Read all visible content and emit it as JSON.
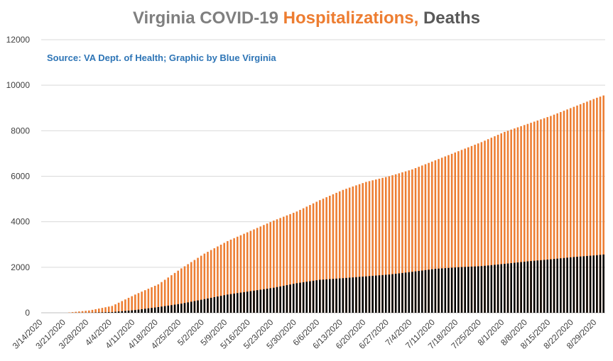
{
  "title": {
    "part1": "Virginia COVID-19 ",
    "part2": "Hospitalizations,",
    "part3": " Deaths",
    "color_part1": "#7f7f7f",
    "color_part2": "#ed7d31",
    "color_part3": "#595959"
  },
  "subtitle": "Source: VA Dept. of Health; Graphic by Blue Virginia",
  "chart_data": {
    "type": "bar",
    "title": "Virginia COVID-19 Hospitalizations, Deaths",
    "x_start": "3/14/2020",
    "x_end": "8/31/2020",
    "x_tick_labels": [
      "3/14/2020",
      "3/21/2020",
      "3/28/2020",
      "4/4/2020",
      "4/11/2020",
      "4/18/2020",
      "4/25/2020",
      "5/2/2020",
      "5/9/2020",
      "5/16/2020",
      "5/23/2020",
      "5/30/2020",
      "6/6/2020",
      "6/13/2020",
      "6/20/2020",
      "6/27/2020",
      "7/4/2020",
      "7/11/2020",
      "7/18/2020",
      "7/25/2020",
      "8/1/2020",
      "8/8/2020",
      "8/15/2020",
      "8/22/2020",
      "8/29/2020"
    ],
    "ylim": [
      0,
      12000
    ],
    "y_ticks": [
      0,
      2000,
      4000,
      6000,
      8000,
      10000,
      12000
    ],
    "grid": true,
    "series": [
      {
        "color": "#ed7d31",
        "anchors": [
          [
            "3/14/2020",
            0
          ],
          [
            "3/21/2020",
            0
          ],
          [
            "3/28/2020",
            100
          ],
          [
            "4/4/2020",
            300
          ],
          [
            "4/11/2020",
            800
          ],
          [
            "4/18/2020",
            1250
          ],
          [
            "4/25/2020",
            1950
          ],
          [
            "5/2/2020",
            2600
          ],
          [
            "5/9/2020",
            3150
          ],
          [
            "5/16/2020",
            3600
          ],
          [
            "5/23/2020",
            4050
          ],
          [
            "5/30/2020",
            4450
          ],
          [
            "6/6/2020",
            4950
          ],
          [
            "6/13/2020",
            5400
          ],
          [
            "6/20/2020",
            5750
          ],
          [
            "6/27/2020",
            6000
          ],
          [
            "7/4/2020",
            6300
          ],
          [
            "7/11/2020",
            6700
          ],
          [
            "7/18/2020",
            7100
          ],
          [
            "7/25/2020",
            7500
          ],
          [
            "8/1/2020",
            7950
          ],
          [
            "8/8/2020",
            8300
          ],
          [
            "8/15/2020",
            8650
          ],
          [
            "8/22/2020",
            9050
          ],
          [
            "8/29/2020",
            9450
          ],
          [
            "8/31/2020",
            9550
          ]
        ]
      },
      {
        "color": "#000000",
        "anchors": [
          [
            "3/14/2020",
            0
          ],
          [
            "3/21/2020",
            0
          ],
          [
            "3/28/2020",
            5
          ],
          [
            "4/4/2020",
            30
          ],
          [
            "4/11/2020",
            120
          ],
          [
            "4/18/2020",
            250
          ],
          [
            "4/25/2020",
            400
          ],
          [
            "5/2/2020",
            600
          ],
          [
            "5/9/2020",
            800
          ],
          [
            "5/16/2020",
            950
          ],
          [
            "5/23/2020",
            1100
          ],
          [
            "5/30/2020",
            1300
          ],
          [
            "6/6/2020",
            1450
          ],
          [
            "6/13/2020",
            1520
          ],
          [
            "6/20/2020",
            1600
          ],
          [
            "6/27/2020",
            1680
          ],
          [
            "7/4/2020",
            1800
          ],
          [
            "7/11/2020",
            1930
          ],
          [
            "7/18/2020",
            2000
          ],
          [
            "7/25/2020",
            2050
          ],
          [
            "8/1/2020",
            2150
          ],
          [
            "8/8/2020",
            2260
          ],
          [
            "8/15/2020",
            2350
          ],
          [
            "8/22/2020",
            2450
          ],
          [
            "8/29/2020",
            2530
          ],
          [
            "8/31/2020",
            2560
          ]
        ]
      }
    ]
  }
}
